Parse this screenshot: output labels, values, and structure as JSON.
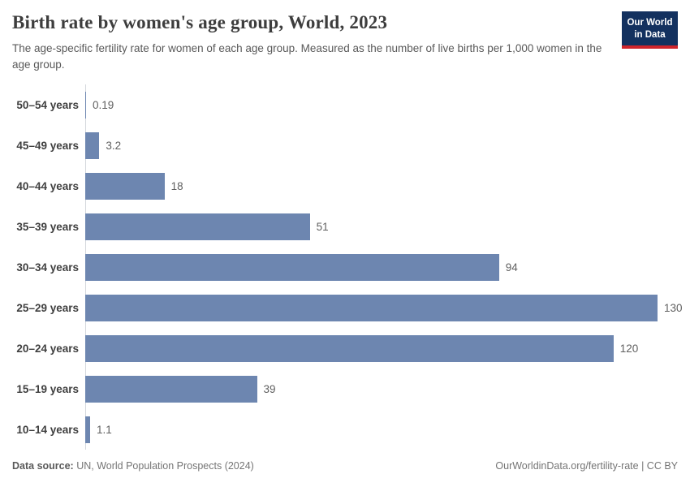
{
  "header": {
    "title": "Birth rate by women's age group, World, 2023",
    "subtitle": "The age-specific fertility rate for women of each age group. Measured as the number of live births per 1,000 women in the age group.",
    "logo": {
      "line1": "Our World",
      "line2": "in Data"
    }
  },
  "chart_data": {
    "type": "bar",
    "orientation": "horizontal",
    "title": "Birth rate by women's age group, World, 2023",
    "unit": "live births per 1,000 women in the age group",
    "categories": [
      "50–54 years",
      "45–49 years",
      "40–44 years",
      "35–39 years",
      "30–34 years",
      "25–29 years",
      "20–24 years",
      "15–19 years",
      "10–14 years"
    ],
    "values": [
      0.19,
      3.2,
      18,
      51,
      94,
      130,
      120,
      39,
      1.1
    ],
    "value_labels": [
      "0.19",
      "3.2",
      "18",
      "51",
      "94",
      "130",
      "120",
      "39",
      "1.1"
    ],
    "xlim": [
      0,
      130
    ],
    "grid": false,
    "legend": false
  },
  "footer": {
    "data_source_label": "Data source:",
    "data_source_value": " UN, World Population Prospects (2024)",
    "attribution": "OurWorldinData.org/fertility-rate | CC BY"
  },
  "colors": {
    "bar": "#6d86b0",
    "logo_bg": "#13315f",
    "logo_stripe": "#cf242b",
    "axis": "#d3d7dc"
  }
}
